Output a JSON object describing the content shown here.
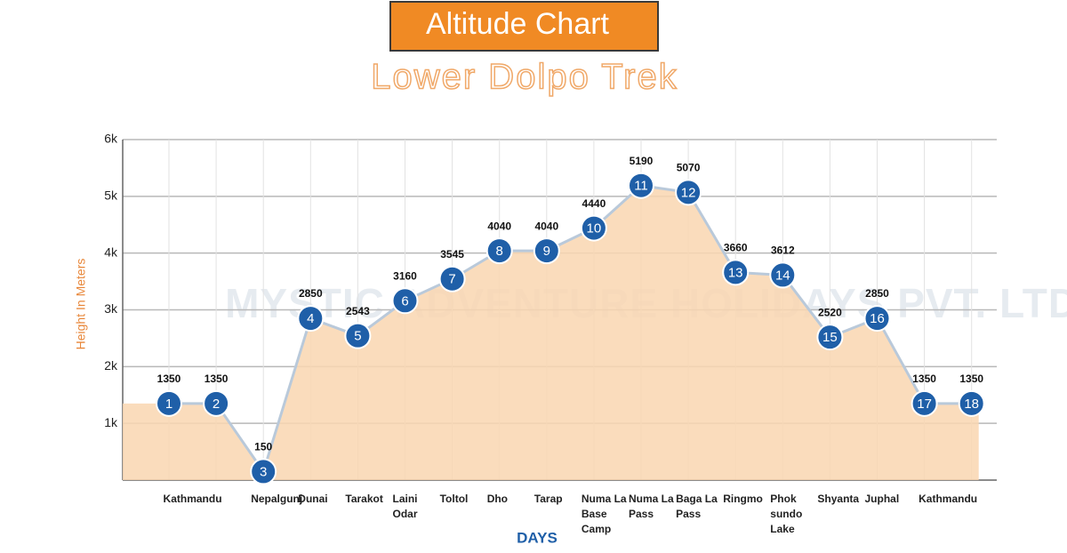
{
  "chart_data": {
    "type": "line",
    "title": "Altitude Chart",
    "subtitle": "Lower Dolpo Trek",
    "watermark": "MYSTIC ADVENTURE HOLIDAYS PVT. LTD.",
    "y_label": "Height In Meters",
    "x_label": "DAYS",
    "categories": [
      "Kathmandu",
      null,
      "Nepalgunj",
      "Dunai",
      "Tarakot",
      "Laini Odar",
      "Toltol",
      "Dho",
      "Tarap",
      "Numa La Base Camp",
      "Numa La Pass",
      "Baga La Pass",
      "Ringmo",
      "Phok sundo Lake",
      "Shyanta",
      "Juphal",
      "Kathmandu",
      null
    ],
    "markers": [
      1,
      2,
      3,
      4,
      5,
      6,
      7,
      8,
      9,
      10,
      11,
      12,
      13,
      14,
      15,
      16,
      17,
      18
    ],
    "series": [
      {
        "name": "Altitude",
        "color": "#1f5fa8",
        "area_color": "#f9d6b0",
        "line_color": "#b9c9da",
        "values": [
          1350,
          1350,
          150,
          2850,
          2543,
          3160,
          3545,
          4040,
          4040,
          4440,
          5190,
          5070,
          3660,
          3612,
          2520,
          2850,
          1350,
          1350
        ]
      }
    ],
    "ylim": [
      0,
      6000
    ],
    "yticks": [
      {
        "value": 1000,
        "label": "1k"
      },
      {
        "value": 2000,
        "label": "2k"
      },
      {
        "value": 3000,
        "label": "3k"
      },
      {
        "value": 4000,
        "label": "4k"
      },
      {
        "value": 5000,
        "label": "5k"
      },
      {
        "value": 6000,
        "label": "6k"
      }
    ],
    "grid": true
  }
}
